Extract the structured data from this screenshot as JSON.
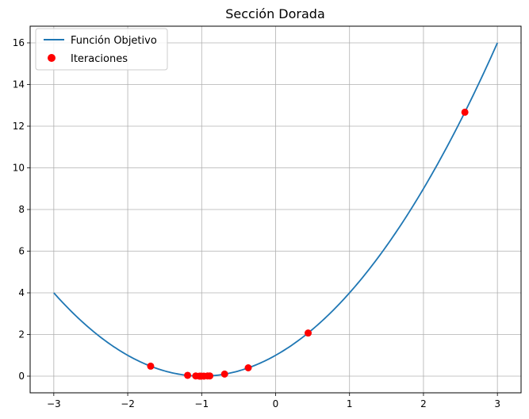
{
  "chart_data": {
    "type": "line",
    "title": "Sección Dorada",
    "xlabel": "",
    "ylabel": "",
    "xlim": [
      -3.32,
      3.32
    ],
    "ylim": [
      -0.8,
      16.8
    ],
    "xticks": [
      -3,
      -2,
      -1,
      0,
      1,
      2,
      3
    ],
    "yticks": [
      0,
      2,
      4,
      6,
      8,
      10,
      12,
      14,
      16
    ],
    "grid": true,
    "legend": {
      "position": "top-left"
    },
    "series": [
      {
        "name": "Función Objetivo",
        "kind": "line",
        "color": "#1f77b4",
        "function": "(x+1)^2",
        "x_range": [
          -3,
          3
        ]
      },
      {
        "name": "Iteraciones",
        "kind": "scatter",
        "color": "#ff0000",
        "points": [
          {
            "x": 2.56,
            "y": 12.67
          },
          {
            "x": 0.44,
            "y": 2.07
          },
          {
            "x": -0.37,
            "y": 0.4
          },
          {
            "x": -0.69,
            "y": 0.1
          },
          {
            "x": -1.69,
            "y": 0.48
          },
          {
            "x": -1.19,
            "y": 0.04
          },
          {
            "x": -1.08,
            "y": 0.01
          },
          {
            "x": -1.03,
            "y": 0.0
          },
          {
            "x": -1.01,
            "y": 0.0
          },
          {
            "x": -0.97,
            "y": 0.0
          },
          {
            "x": -0.92,
            "y": 0.01
          },
          {
            "x": -0.89,
            "y": 0.01
          }
        ]
      }
    ]
  }
}
